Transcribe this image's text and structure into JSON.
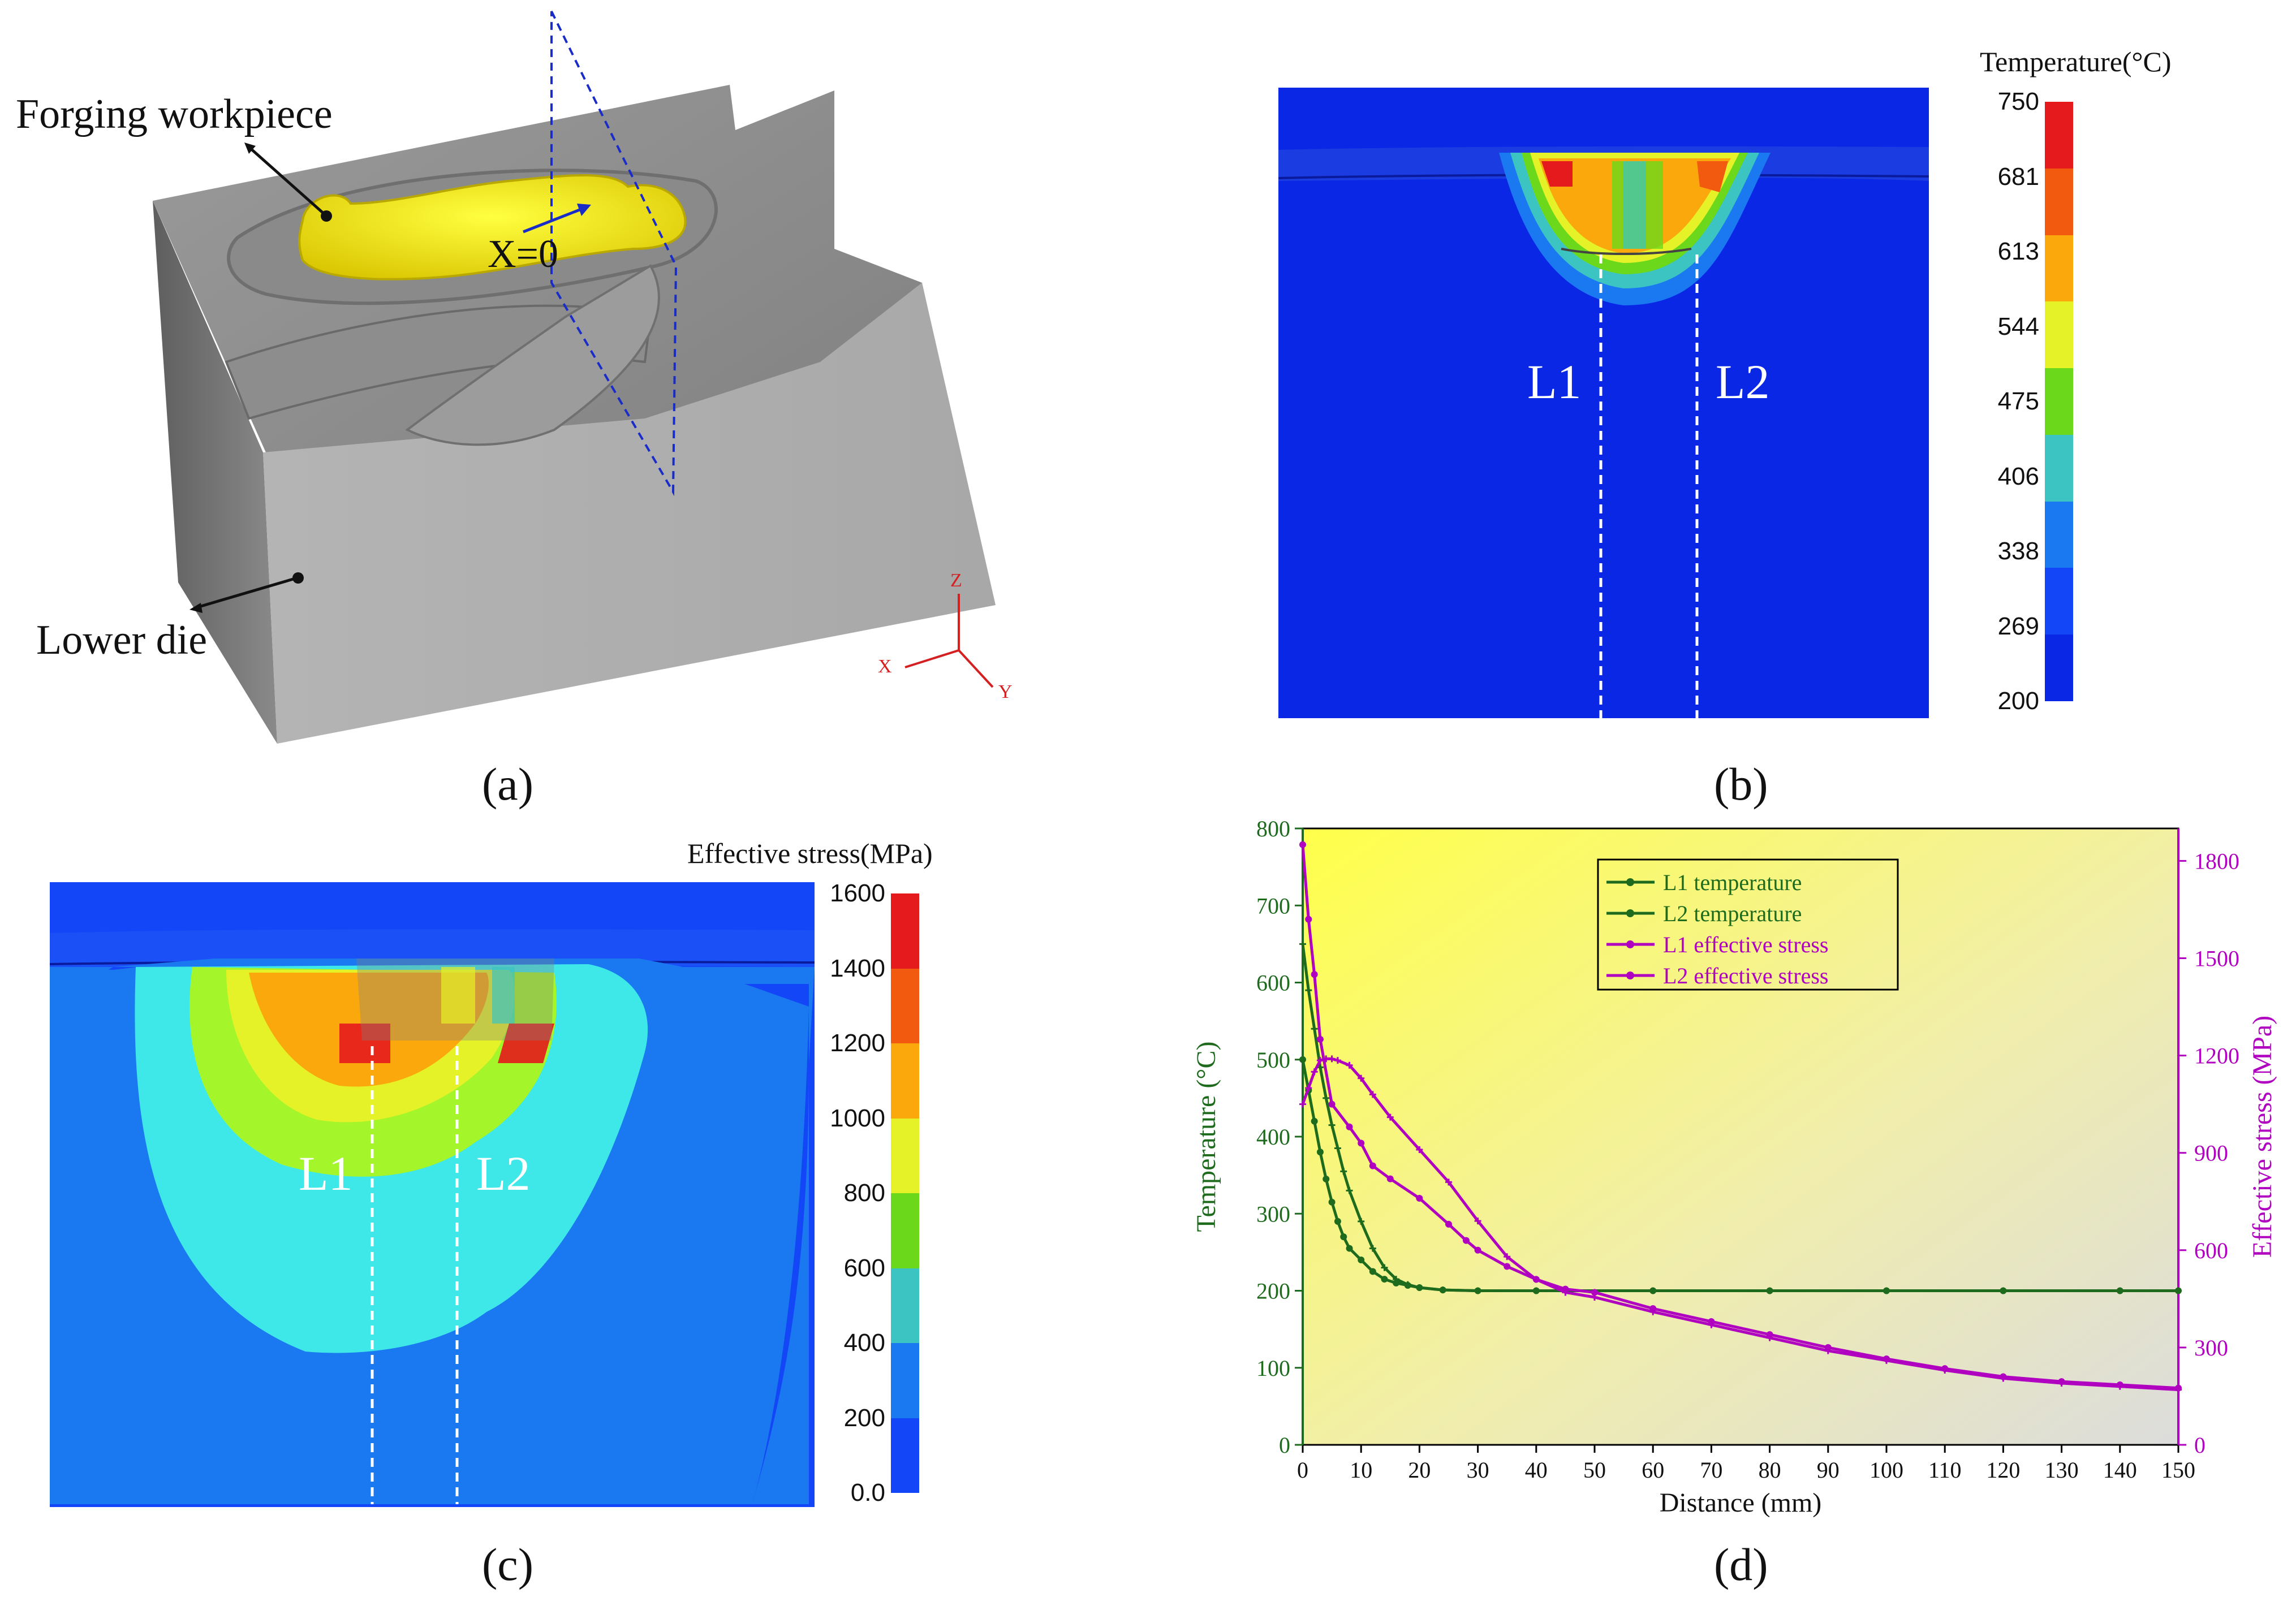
{
  "panels": {
    "a": {
      "caption": "(a)",
      "label_workpiece": "Forging workpiece",
      "label_die": "Lower die",
      "label_plane": "X=0",
      "axis_x": "X",
      "axis_y": "Y",
      "axis_z": "Z"
    },
    "b": {
      "caption": "(b)",
      "legend_title": "Temperature(°C)",
      "legend_ticks": [
        "750",
        "681",
        "613",
        "544",
        "475",
        "406",
        "338",
        "269",
        "200"
      ],
      "legend_colors": [
        "#e41a1c",
        "#f25a0f",
        "#fba80c",
        "#e5f228",
        "#6bd81c",
        "#3cc4c2",
        "#1a79f0",
        "#1346f7",
        "#0a27e6"
      ],
      "line1": "L1",
      "line2": "L2"
    },
    "c": {
      "caption": "(c)",
      "legend_title": "Effective stress(MPa)",
      "legend_ticks": [
        "1600",
        "1400",
        "1200",
        "1000",
        "800",
        "600",
        "400",
        "200",
        "0.0"
      ],
      "legend_colors": [
        "#e41a1c",
        "#f25a0f",
        "#fba80c",
        "#e5f228",
        "#6bd81c",
        "#3cc4c2",
        "#1a79f0",
        "#1346f7"
      ],
      "line1": "L1",
      "line2": "L2"
    },
    "d": {
      "caption": "(d)"
    }
  },
  "chart_data": {
    "type": "line",
    "xlabel": "Distance (mm)",
    "ylabel_left": "Temperature (°C)",
    "ylabel_right": "Effective stress (MPa)",
    "xlim": [
      0,
      150
    ],
    "ylim_left": [
      0,
      800
    ],
    "ylim_right": [
      0,
      1900
    ],
    "xticks": [
      0,
      10,
      20,
      30,
      40,
      50,
      60,
      70,
      80,
      90,
      100,
      110,
      120,
      130,
      140,
      150
    ],
    "yticks_left": [
      0,
      100,
      200,
      300,
      400,
      500,
      600,
      700,
      800
    ],
    "yticks_right": [
      0,
      300,
      600,
      900,
      1200,
      1500,
      1800
    ],
    "legend": [
      "L1 temperature",
      "L2 temperature",
      "L1 effective stress",
      "L2 effective stress"
    ],
    "series": [
      {
        "name": "L1 temperature",
        "axis": "left",
        "color": "#1e6b1e",
        "x": [
          0,
          1,
          2,
          3,
          4,
          5,
          6,
          7,
          8,
          10,
          12,
          14,
          16,
          18,
          20,
          24,
          30,
          40,
          60,
          80,
          100,
          120,
          140,
          150
        ],
        "y": [
          500,
          460,
          420,
          380,
          345,
          315,
          290,
          270,
          255,
          240,
          225,
          215,
          210,
          207,
          204,
          201,
          200,
          200,
          200,
          200,
          200,
          200,
          200,
          200
        ]
      },
      {
        "name": "L2 temperature",
        "axis": "left",
        "color": "#1e6b1e",
        "x": [
          0,
          1,
          2,
          3,
          4,
          5,
          6,
          7,
          8,
          10,
          12,
          14,
          16,
          18,
          20,
          24,
          30,
          40,
          60,
          80,
          100,
          120,
          140,
          150
        ],
        "y": [
          650,
          590,
          540,
          490,
          450,
          415,
          385,
          355,
          330,
          290,
          255,
          230,
          215,
          208,
          204,
          201,
          200,
          200,
          200,
          200,
          200,
          200,
          200,
          200
        ]
      },
      {
        "name": "L1 effective stress",
        "axis": "right",
        "color": "#b000c0",
        "x": [
          0,
          1,
          2,
          3,
          5,
          8,
          10,
          12,
          15,
          20,
          25,
          28,
          30,
          35,
          40,
          45,
          50,
          60,
          70,
          80,
          90,
          100,
          110,
          120,
          130,
          140,
          150
        ],
        "y": [
          1850,
          1620,
          1450,
          1250,
          1050,
          980,
          930,
          860,
          820,
          760,
          680,
          630,
          600,
          550,
          510,
          480,
          470,
          420,
          380,
          340,
          300,
          265,
          235,
          210,
          195,
          185,
          175
        ]
      },
      {
        "name": "L2 effective stress",
        "axis": "right",
        "color": "#b000c0",
        "x": [
          0,
          1,
          2,
          3,
          4,
          5,
          6,
          8,
          10,
          12,
          15,
          20,
          25,
          30,
          35,
          40,
          45,
          50,
          60,
          70,
          80,
          90,
          100,
          110,
          120,
          130,
          140,
          150
        ],
        "y": [
          1050,
          1100,
          1150,
          1185,
          1190,
          1190,
          1185,
          1170,
          1130,
          1080,
          1010,
          910,
          810,
          690,
          580,
          510,
          470,
          455,
          410,
          370,
          330,
          290,
          260,
          230,
          205,
          190,
          180,
          170
        ]
      }
    ]
  }
}
